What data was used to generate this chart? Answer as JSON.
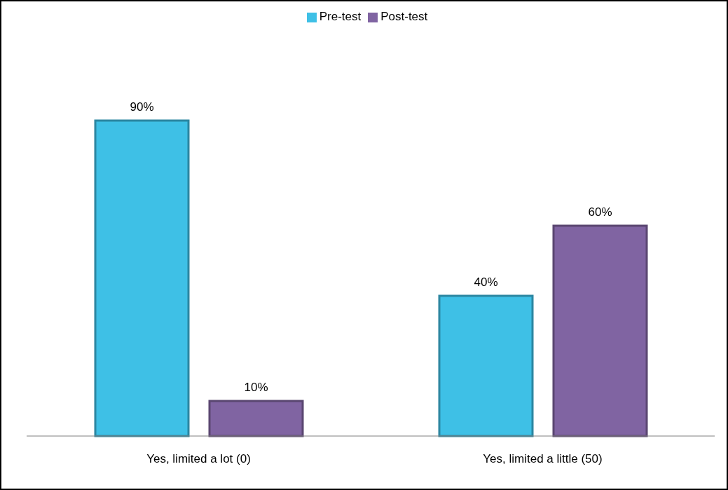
{
  "chart_data": {
    "type": "bar",
    "categories": [
      "Yes, limited a lot (0)",
      "Yes, limited a little (50)"
    ],
    "series": [
      {
        "name": "Pre-test",
        "color": "#3ec0e6",
        "values": [
          90,
          40
        ],
        "value_labels": [
          "90%",
          "40%"
        ]
      },
      {
        "name": "Post-test",
        "color": "#8064a2",
        "values": [
          10,
          60
        ],
        "value_labels": [
          "10%",
          "60%"
        ]
      }
    ],
    "legend": "top",
    "grid": false
  }
}
